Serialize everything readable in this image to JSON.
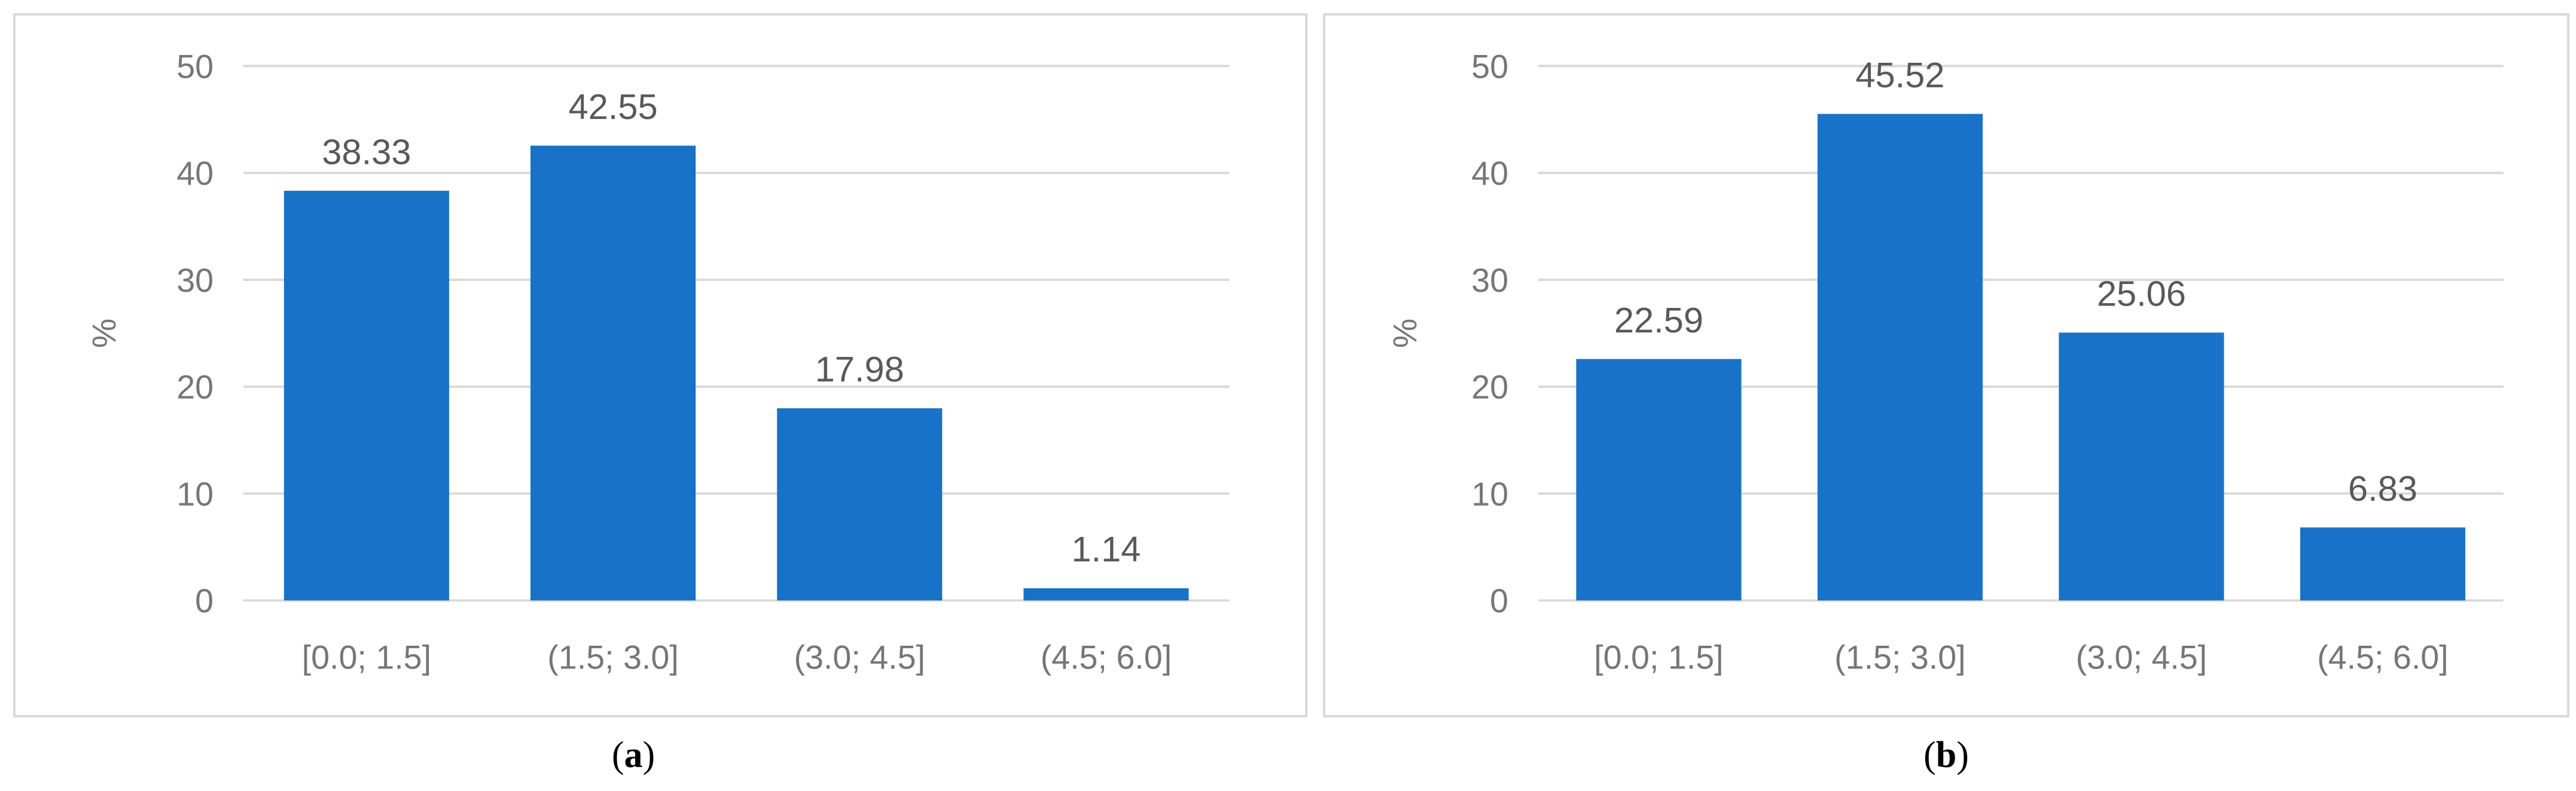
{
  "chart_data": [
    {
      "type": "bar",
      "panel": "a",
      "categories": [
        "[0.0; 1.5]",
        "(1.5; 3.0]",
        "(3.0; 4.5]",
        "(4.5; 6.0]"
      ],
      "values": [
        38.33,
        42.55,
        17.98,
        1.14
      ],
      "data_labels": [
        "38.33",
        "42.55",
        "17.98",
        "1.14"
      ],
      "title": "",
      "xlabel": "",
      "ylabel": "%",
      "ylim": [
        0,
        50
      ],
      "yticks": [
        "0",
        "10",
        "20",
        "30",
        "40",
        "50"
      ],
      "grid": true,
      "bar_color": "#1872C8"
    },
    {
      "type": "bar",
      "panel": "b",
      "categories": [
        "[0.0; 1.5]",
        "(1.5; 3.0]",
        "(3.0; 4.5]",
        "(4.5; 6.0]"
      ],
      "values": [
        22.59,
        45.52,
        25.06,
        6.83
      ],
      "data_labels": [
        "22.59",
        "45.52",
        "25.06",
        "6.83"
      ],
      "title": "",
      "xlabel": "",
      "ylabel": "%",
      "ylim": [
        0,
        50
      ],
      "yticks": [
        "0",
        "10",
        "20",
        "30",
        "40",
        "50"
      ],
      "grid": true,
      "bar_color": "#1872C8"
    }
  ],
  "captions": [
    {
      "open": "(",
      "letter": "a",
      "close": ")"
    },
    {
      "open": "(",
      "letter": "b",
      "close": ")"
    }
  ],
  "colors": {
    "bar": "#1872C8",
    "gridline": "#d9d9d9",
    "tick_text": "#767676",
    "label_text": "#595959",
    "border": "#d9d9d9"
  }
}
